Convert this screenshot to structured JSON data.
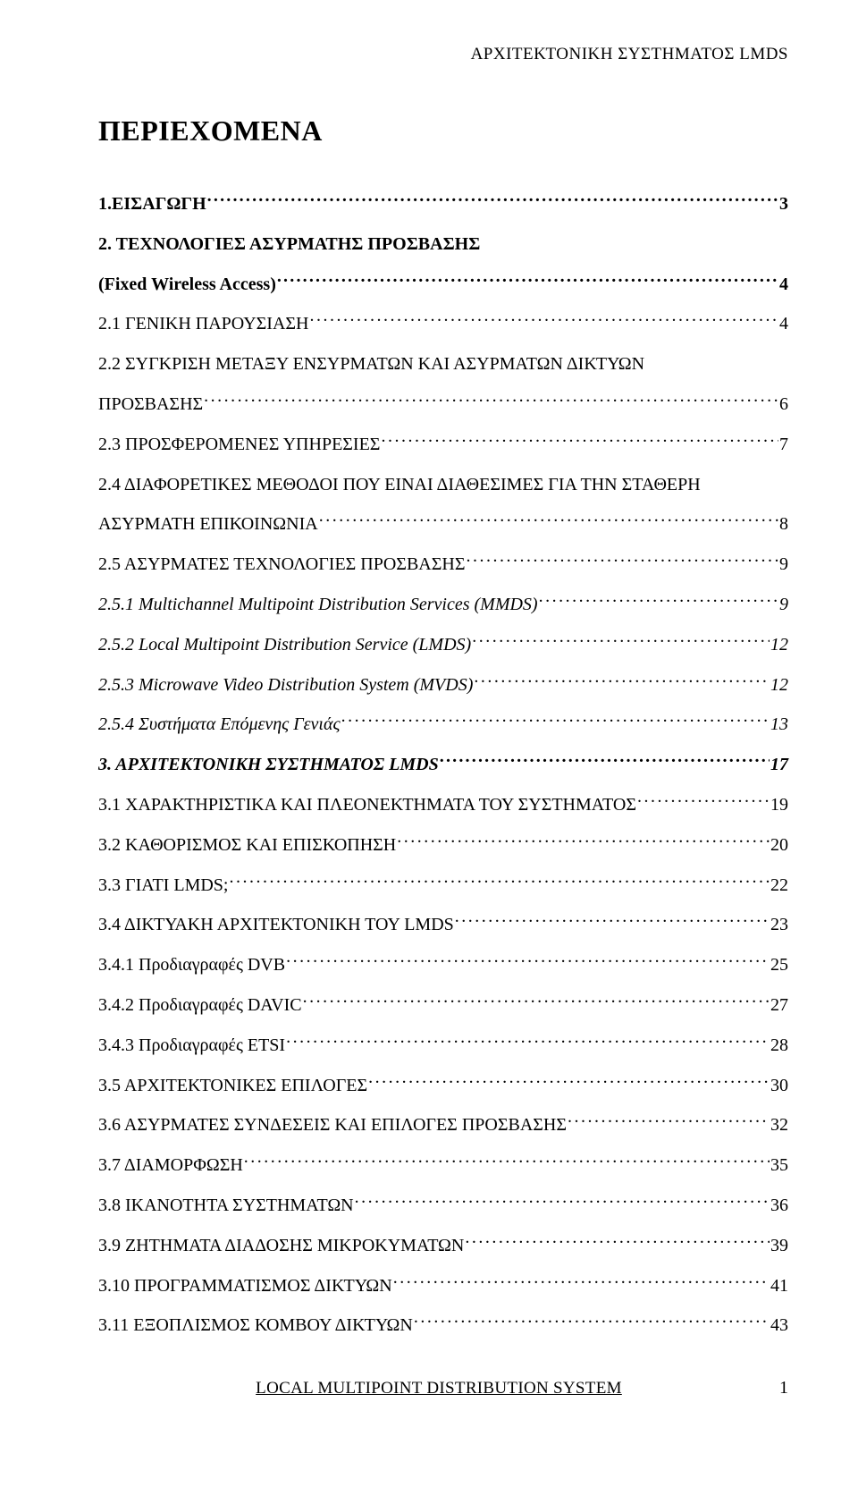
{
  "runningHeader": "ΑΡΧΙΤΕΚΤΟΝΙΚΗ ΣΥΣΤΗΜΑΤΟΣ LMDS",
  "tocTitle": "ΠΕΡΙΕΧΟΜΕΝΑ",
  "entries": [
    {
      "label": "1.ΕΙΣΑΓΩΓΗ",
      "page": "3",
      "bold": true
    },
    {
      "label": "2. ΤΕΧΝΟΛΟΓΙΕΣ ΑΣΥΡΜΑΤΗΣ ΠΡΟΣΒΑΣΗΣ",
      "bold": true,
      "noLeader": true
    },
    {
      "label": "(Fixed Wireless Access)",
      "page": "4",
      "bold": true
    },
    {
      "label": "2.1 ΓΕΝΙΚΗ ΠΑΡΟΥΣΙΑΣΗ",
      "page": "4"
    },
    {
      "label": "2.2 ΣΥΓΚΡΙΣΗ ΜΕΤΑΞΥ ΕΝΣΥΡΜΑΤΩΝ ΚΑΙ ΑΣΥΡΜΑΤΩΝ ΔΙΚΤΥΩΝ",
      "noLeader": true
    },
    {
      "label": "ΠΡΟΣΒΑΣΗΣ",
      "page": "6"
    },
    {
      "label": "2.3 ΠΡΟΣΦΕΡΟΜΕΝΕΣ ΥΠΗΡΕΣΙΕΣ",
      "page": "7"
    },
    {
      "label": "2.4 ΔΙΑΦΟΡΕΤΙΚΕΣ ΜΕΘΟΔΟΙ ΠΟΥ ΕΙΝΑΙ ΔΙΑΘΕΣΙΜΕΣ ΓΙΑ ΤΗΝ ΣΤΑΘΕΡΗ",
      "noLeader": true
    },
    {
      "label": "ΑΣΥΡΜΑΤΗ ΕΠΙΚΟΙΝΩΝΙΑ",
      "page": "8"
    },
    {
      "label": "2.5 ΑΣΥΡΜΑΤΕΣ ΤΕΧΝΟΛΟΓΙΕΣ ΠΡΟΣΒΑΣΗΣ",
      "page": "9"
    },
    {
      "label": "2.5.1 Multichannel Multipoint Distribution Services (MMDS)",
      "page": "9",
      "italic": true
    },
    {
      "label": "2.5.2 Local Multipoint Distribution Service (LMDS)",
      "page": "12",
      "italic": true
    },
    {
      "label": "2.5.3 Microwave Video Distribution System (MVDS)",
      "page": "12",
      "italic": true
    },
    {
      "label": "2.5.4 Συστήματα Επόμενης Γενιάς",
      "page": "13",
      "italic": true
    },
    {
      "label": "3. ΑΡΧΙΤΕΚΤΟΝΙΚΗ ΣΥΣΤΗΜΑΤΟΣ LMDS",
      "page": "17",
      "bold": true,
      "italic": true
    },
    {
      "label": "3.1 ΧΑΡΑΚΤΗΡΙΣΤΙΚΑ ΚΑΙ ΠΛΕΟΝΕΚΤΗΜΑΤΑ ΤΟΥ  ΣΥΣΤΗΜΑΤΟΣ",
      "page": "19"
    },
    {
      "label": "3.2 ΚΑΘΟΡΙΣΜΟΣ ΚΑΙ ΕΠΙΣΚΟΠΗΣΗ",
      "page": "20"
    },
    {
      "label": "3.3 ΓΙΑΤΙ LMDS;",
      "page": "22"
    },
    {
      "label": "3.4 ΔΙΚΤΥΑΚΗ ΑΡΧΙΤΕΚΤΟΝΙΚΗ ΤΟΥ LMDS",
      "page": "23"
    },
    {
      "label": "3.4.1 Προδιαγραφές DVB",
      "page": "25"
    },
    {
      "label": "3.4.2 Προδιαγραφές DAVIC",
      "page": "27"
    },
    {
      "label": "3.4.3 Προδιαγραφές ETSI",
      "page": "28"
    },
    {
      "label": "3.5 ΑΡΧΙΤΕΚΤΟΝΙΚΕΣ ΕΠΙΛΟΓΕΣ",
      "page": "30"
    },
    {
      "label": "3.6 ΑΣΥΡΜΑΤΕΣ ΣΥΝΔΕΣΕΙΣ ΚΑΙ ΕΠΙΛΟΓΕΣ ΠΡΟΣΒΑΣΗΣ",
      "page": "32"
    },
    {
      "label": "3.7 ΔΙΑΜΟΡΦΩΣΗ",
      "page": "35"
    },
    {
      "label": "3.8 ΙΚΑΝΟΤΗΤΑ ΣΥΣΤΗΜΑΤΩΝ",
      "page": "36"
    },
    {
      "label": "3.9 ΖΗΤΗΜΑΤΑ ΔΙΑΔΟΣΗΣ ΜΙΚΡΟΚΥΜΑΤΩΝ",
      "page": "39"
    },
    {
      "label": "3.10 ΠΡΟΓΡΑΜΜΑΤΙΣΜΟΣ ΔΙΚΤΥΩΝ",
      "page": "41"
    },
    {
      "label": "3.11 ΕΞΟΠΛΙΣΜΟΣ ΚΟΜΒΟΥ ΔΙΚΤΥΩΝ",
      "page": "43"
    }
  ],
  "footer": {
    "title": "LOCAL MULTIPOINT DISTRIBUTION SYSTEM",
    "page": "1"
  }
}
